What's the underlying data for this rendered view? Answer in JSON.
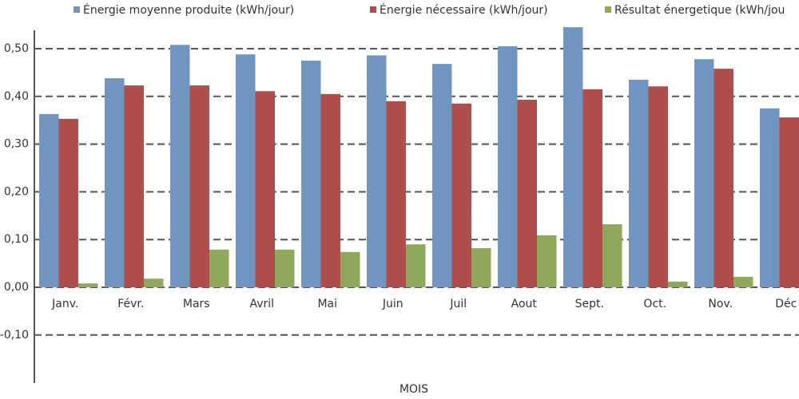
{
  "chart_data": {
    "type": "bar",
    "x_label": "MOIS",
    "categories": [
      "Janv.",
      "Févr.",
      "Mars",
      "Avril",
      "Mai",
      "Juin",
      "Juil",
      "Aout",
      "Sept.",
      "Oct.",
      "Nov.",
      "Déc"
    ],
    "series": [
      {
        "name": "Énergie moyenne produite (kWh/jour)",
        "color": "#7096c0",
        "values": [
          0.363,
          0.438,
          0.508,
          0.488,
          0.475,
          0.486,
          0.468,
          0.505,
          0.545,
          0.435,
          0.478,
          0.375
        ]
      },
      {
        "name": "Énergie nécessaire (kWh/jour)",
        "color": "#b04e4c",
        "values": [
          0.353,
          0.423,
          0.423,
          0.411,
          0.405,
          0.39,
          0.385,
          0.393,
          0.415,
          0.421,
          0.458,
          0.356
        ]
      },
      {
        "name": "Résultat énergetique (kWh/jou",
        "color": "#8fa85a",
        "values": [
          0.008,
          0.018,
          0.079,
          0.079,
          0.074,
          0.09,
          0.082,
          0.109,
          0.132,
          0.012,
          0.022,
          null
        ]
      }
    ],
    "ylim": [
      -0.2,
      0.54
    ],
    "yticks": [
      {
        "value": -0.1,
        "label": "-0,10"
      },
      {
        "value": 0,
        "label": "0,00"
      },
      {
        "value": 0.1,
        "label": "0,10"
      },
      {
        "value": 0.2,
        "label": "0,20"
      },
      {
        "value": 0.3,
        "label": "0,30"
      },
      {
        "value": 0.4,
        "label": "0,40"
      },
      {
        "value": 0.5,
        "label": "0,50"
      }
    ],
    "grid": true
  }
}
